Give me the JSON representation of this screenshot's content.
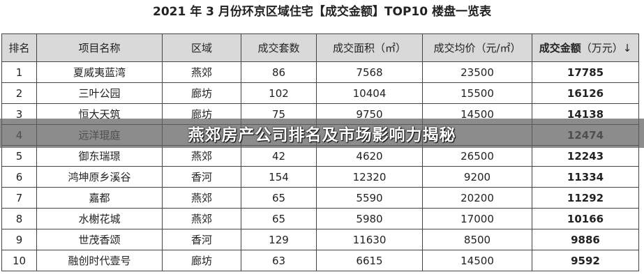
{
  "title": "2021 年 3 月份环京区域住宅【成交金额】TOP10 楼盘一览表",
  "headers": [
    "排名",
    "项目名称",
    "区域",
    "成交套数",
    "成交面积（㎡）",
    "成交均价（元/㎡）"
  ],
  "last_header_bold": "成交金额",
  "last_header_rest": "（万元）↓",
  "rows": [
    [
      "1",
      "夏威夷蓝湾",
      "燕郊",
      "86",
      "7568",
      "23500",
      "17785"
    ],
    [
      "2",
      "三叶公园",
      "廊坊",
      "102",
      "10404",
      "15500",
      "16126"
    ],
    [
      "3",
      "恒大天筑",
      "廊坊",
      "75",
      "9750",
      "14500",
      "14138"
    ],
    [
      "4",
      "远洋琨庭",
      "",
      "",
      "",
      "",
      "12474"
    ],
    [
      "5",
      "御东瑞璟",
      "燕郊",
      "42",
      "4620",
      "26500",
      "12243"
    ],
    [
      "6",
      "鸿坤原乡溪谷",
      "香河",
      "154",
      "12320",
      "9200",
      "11334"
    ],
    [
      "7",
      "嘉都",
      "燕郊",
      "65",
      "5590",
      "20200",
      "11292"
    ],
    [
      "8",
      "水榭花城",
      "燕郊",
      "65",
      "5980",
      "17000",
      "10166"
    ],
    [
      "9",
      "世茂香颂",
      "香河",
      "129",
      "11630",
      "8500",
      "9886"
    ],
    [
      "10",
      "融创时代壹号",
      "廊坊",
      "63",
      "6615",
      "14500",
      "9592"
    ]
  ],
  "banner": "燕郊房产公司排名及市场影响力揭秘"
}
